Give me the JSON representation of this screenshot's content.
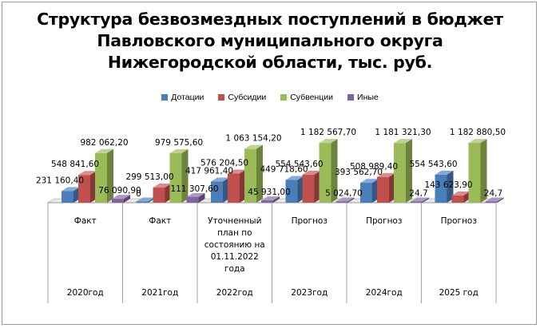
{
  "title_lines": [
    "Структура безвозмездных поступлений в бюджет",
    "Павловского муниципального округа",
    "Нижегородской области, тыс. руб."
  ],
  "chart_data": {
    "type": "bar",
    "title": "Структура безвозмездных поступлений в бюджет Павловского муниципального округа Нижегородской области, тыс. руб.",
    "legend_position": "top",
    "grid": false,
    "ylim": [
      0,
      1200000
    ],
    "categories": [
      {
        "kind": "Факт",
        "year": "2020год"
      },
      {
        "kind": "Факт",
        "year": "2021год"
      },
      {
        "kind": "Уточненный план по состоянию на 01.11.2022 года",
        "year": "2022год"
      },
      {
        "kind": "Прогноз",
        "year": "2023год"
      },
      {
        "kind": "Прогноз",
        "year": "2024год"
      },
      {
        "kind": "Прогноз",
        "year": "2025 год"
      }
    ],
    "kind_lines": [
      [
        "Факт"
      ],
      [
        "Факт"
      ],
      [
        "Уточненный",
        "план по",
        "состоянию на",
        "01.11.2022",
        "года"
      ],
      [
        "Прогноз"
      ],
      [
        "Прогноз"
      ],
      [
        "Прогноз"
      ]
    ],
    "series": [
      {
        "name": "Дотации",
        "color": "#4a7ebb",
        "values": [
          231160.4,
          0,
          417961.4,
          449718.6,
          393562.7,
          554543.6
        ],
        "labels": [
          "231 160,40",
          "0",
          "417 961,40",
          "449 718,60",
          "393 562,70",
          "554 543,60"
        ]
      },
      {
        "name": "Субсидии",
        "color": "#c0504d",
        "values": [
          548841.6,
          299513.0,
          576204.5,
          554543.6,
          508989.4,
          143623.9
        ],
        "labels": [
          "548 841,60",
          "299 513,00",
          "576 204,50",
          "554 543,60",
          "508 989,40",
          "143 623,90"
        ]
      },
      {
        "name": "Субвенции",
        "color": "#9bbb59",
        "values": [
          982062.2,
          979575.6,
          1063154.2,
          1182567.7,
          1181321.3,
          1182880.5
        ],
        "labels": [
          "982 062,20",
          "979 575,60",
          "1 063 154,20",
          "1 182 567,70",
          "1 181 321,30",
          "1 182 880,50"
        ]
      },
      {
        "name": "Иные",
        "color": "#8064a2",
        "values": [
          76090.9,
          111307.6,
          45931.0,
          5024.7,
          24.7,
          24.7
        ],
        "labels": [
          "76 090,90",
          "111 307,60",
          "45 931,00",
          "5 024,70",
          "24,7",
          "24,7"
        ]
      }
    ]
  }
}
